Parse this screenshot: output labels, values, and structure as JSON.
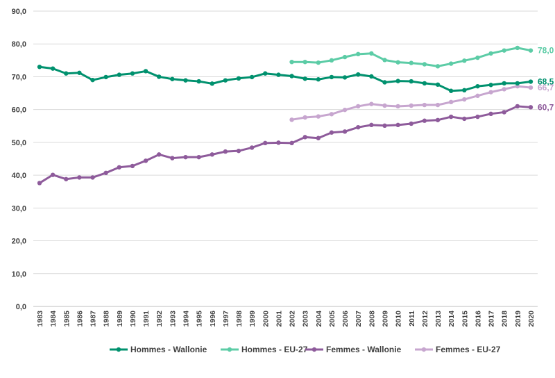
{
  "chart_data": {
    "type": "line",
    "title": "",
    "xlabel": "",
    "ylabel": "",
    "ylim": [
      0,
      90
    ],
    "y_ticks": [
      "0,0",
      "10,0",
      "20,0",
      "30,0",
      "40,0",
      "50,0",
      "60,0",
      "70,0",
      "80,0",
      "90,0"
    ],
    "x": [
      "1983",
      "1984",
      "1985",
      "1986",
      "1987",
      "1988",
      "1989",
      "1990",
      "1991",
      "1992",
      "1993",
      "1994",
      "1995",
      "1996",
      "1997",
      "1998",
      "1999",
      "2000",
      "2001",
      "2002",
      "2003",
      "2004",
      "2005",
      "2006",
      "2007",
      "2008",
      "2009",
      "2010",
      "2011",
      "2012",
      "2013",
      "2014",
      "2015",
      "2016",
      "2017",
      "2018",
      "2019",
      "2020"
    ],
    "grid": "horizontal",
    "legend_position": "bottom",
    "series": [
      {
        "name": "Hommes - Wallonie",
        "color": "#00916E",
        "values": [
          73.0,
          72.5,
          71.0,
          71.2,
          69.0,
          69.9,
          70.6,
          71.0,
          71.7,
          70.0,
          69.3,
          68.9,
          68.6,
          67.9,
          68.9,
          69.5,
          69.9,
          71.0,
          70.6,
          70.2,
          69.4,
          69.2,
          69.9,
          69.8,
          70.7,
          70.1,
          68.3,
          68.7,
          68.6,
          68.0,
          67.6,
          65.7,
          65.9,
          67.1,
          67.5,
          68.0,
          68.0,
          68.5
        ],
        "end_label": "68,5"
      },
      {
        "name": "Hommes - EU-27",
        "color": "#5CCCA6",
        "values": [
          null,
          null,
          null,
          null,
          null,
          null,
          null,
          null,
          null,
          null,
          null,
          null,
          null,
          null,
          null,
          null,
          null,
          null,
          null,
          74.5,
          74.5,
          74.3,
          75.0,
          76.0,
          76.9,
          77.1,
          75.1,
          74.4,
          74.2,
          73.8,
          73.2,
          74.0,
          74.9,
          75.8,
          77.1,
          78.0,
          78.8,
          78.0
        ],
        "end_label": "78,0"
      },
      {
        "name": "Femmes - Wallonie",
        "color": "#8E5B9B",
        "values": [
          37.6,
          40.1,
          38.8,
          39.3,
          39.3,
          40.7,
          42.4,
          42.8,
          44.4,
          46.3,
          45.2,
          45.5,
          45.5,
          46.3,
          47.2,
          47.4,
          48.4,
          49.8,
          49.9,
          49.8,
          51.6,
          51.3,
          53.0,
          53.3,
          54.6,
          55.3,
          55.1,
          55.3,
          55.7,
          56.6,
          56.8,
          57.8,
          57.2,
          57.8,
          58.7,
          59.2,
          61.0,
          60.7
        ],
        "end_label": "60,7"
      },
      {
        "name": "Femmes - EU-27",
        "color": "#C7A6CF",
        "values": [
          null,
          null,
          null,
          null,
          null,
          null,
          null,
          null,
          null,
          null,
          null,
          null,
          null,
          null,
          null,
          null,
          null,
          null,
          null,
          56.9,
          57.6,
          57.9,
          58.6,
          59.9,
          61.0,
          61.7,
          61.2,
          61.0,
          61.2,
          61.4,
          61.4,
          62.3,
          63.1,
          64.2,
          65.3,
          66.2,
          67.1,
          66.7
        ],
        "end_label": "66,7"
      }
    ]
  }
}
